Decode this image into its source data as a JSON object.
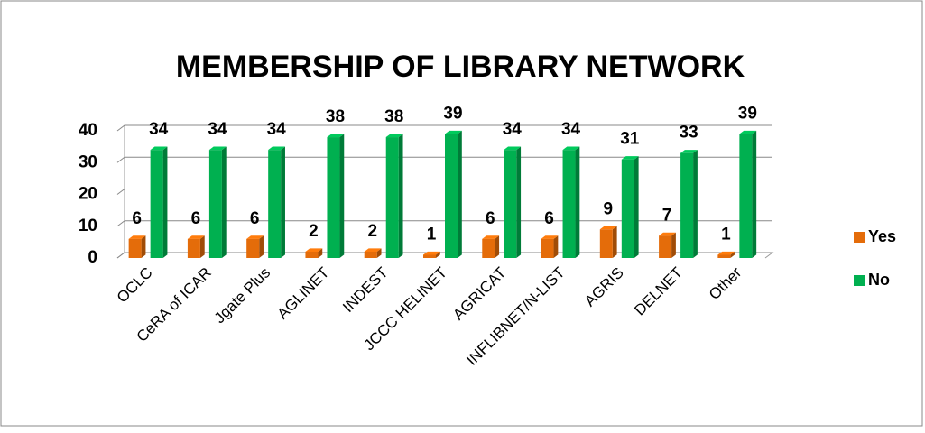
{
  "chart_data": {
    "type": "bar",
    "title": "MEMBERSHIP OF LIBRARY NETWORK",
    "categories": [
      "OCLC",
      "CeRA of ICAR",
      "Jgate Plus",
      "AGLINET",
      "INDEST",
      "JCCC HELINET",
      "AGRICAT",
      "INFLIBNET/N-LIST",
      "AGRIS",
      "DELNET",
      "Other"
    ],
    "series": [
      {
        "name": "Yes",
        "color": "#e46c0a",
        "values": [
          6,
          6,
          6,
          2,
          2,
          1,
          6,
          6,
          9,
          7,
          1
        ]
      },
      {
        "name": "No",
        "color": "#00b050",
        "values": [
          34,
          34,
          34,
          38,
          38,
          39,
          34,
          34,
          31,
          33,
          39
        ]
      }
    ],
    "ylim": [
      0,
      40
    ],
    "yticks": [
      0,
      10,
      20,
      30,
      40
    ],
    "grid": true,
    "legend": "right"
  }
}
